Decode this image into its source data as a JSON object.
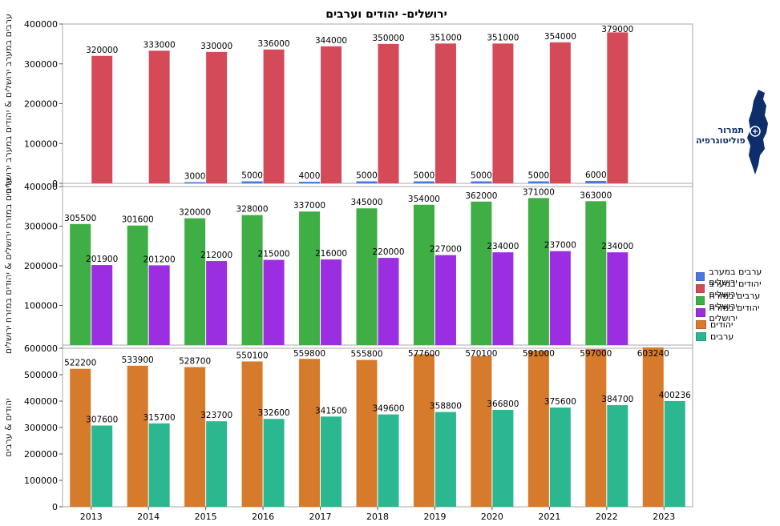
{
  "title": "ירושלים- יהודים וערבים",
  "logo": {
    "line1": "תמרור",
    "line2": "פוליטוגרפיה"
  },
  "colors": {
    "west_arabs": "#4a78e0",
    "west_jews": "#d44a58",
    "east_arabs": "#3fae44",
    "east_jews": "#9b2ee0",
    "jews": "#d67a2c",
    "arabs": "#2bb890"
  },
  "legend": [
    {
      "label": "ערבים במערב ירושלים",
      "color": "#4a78e0"
    },
    {
      "label": "יהודים במערב ירושלים",
      "color": "#d44a58"
    },
    {
      "label": "ערבים במזרח ירושלים",
      "color": "#3fae44"
    },
    {
      "label": "יהודים במזרח ירושלים",
      "color": "#9b2ee0"
    },
    {
      "label": "יהודים",
      "color": "#d67a2c"
    },
    {
      "label": "ערבים",
      "color": "#2bb890"
    }
  ],
  "chart_data": [
    {
      "type": "bar",
      "ylabel": "ערבים במערב ירושלים & יהודים במערב ירושלים",
      "ylim": [
        0,
        400000
      ],
      "yticks": [
        0,
        100000,
        200000,
        300000,
        400000
      ],
      "categories": [
        "2013",
        "2014",
        "2015",
        "2016",
        "2017",
        "2018",
        "2019",
        "2020",
        "2021",
        "2022"
      ],
      "series": [
        {
          "name": "ערבים במערב ירושלים",
          "color": "#4a78e0",
          "values": [
            null,
            null,
            3000,
            5000,
            4000,
            5000,
            5000,
            5000,
            5000,
            6000
          ]
        },
        {
          "name": "יהודים במערב ירושלים",
          "color": "#d44a58",
          "values": [
            320000,
            333000,
            330000,
            336000,
            344000,
            350000,
            351000,
            351000,
            354000,
            379000
          ]
        }
      ]
    },
    {
      "type": "bar",
      "ylabel": "ערבים במזרח ירושלים & יהודים במזרח ירושלים",
      "ylim": [
        0,
        400000
      ],
      "yticks": [
        100000,
        200000,
        300000,
        400000
      ],
      "categories": [
        "2013",
        "2014",
        "2015",
        "2016",
        "2017",
        "2018",
        "2019",
        "2020",
        "2021",
        "2022"
      ],
      "series": [
        {
          "name": "ערבים במזרח ירושלים",
          "color": "#3fae44",
          "values": [
            305500,
            301600,
            320000,
            328000,
            337000,
            345000,
            354000,
            362000,
            371000,
            363000
          ]
        },
        {
          "name": "יהודים במזרח ירושלים",
          "color": "#9b2ee0",
          "values": [
            201900,
            201200,
            212000,
            215000,
            216000,
            220000,
            227000,
            234000,
            237000,
            234000
          ]
        }
      ]
    },
    {
      "type": "bar",
      "ylabel": "יהודים & ערבים",
      "ylim": [
        0,
        600000
      ],
      "yticks": [
        0,
        100000,
        200000,
        300000,
        400000,
        500000,
        600000
      ],
      "categories": [
        "2013",
        "2014",
        "2015",
        "2016",
        "2017",
        "2018",
        "2019",
        "2020",
        "2021",
        "2022",
        "2023"
      ],
      "series": [
        {
          "name": "יהודים",
          "color": "#d67a2c",
          "values": [
            522200,
            533900,
            528700,
            550100,
            559800,
            555800,
            577600,
            570100,
            591000,
            597000,
            603240
          ]
        },
        {
          "name": "ערבים",
          "color": "#2bb890",
          "values": [
            307600,
            315700,
            323700,
            332600,
            341500,
            349600,
            358800,
            366800,
            375600,
            384700,
            400236
          ]
        }
      ]
    }
  ]
}
